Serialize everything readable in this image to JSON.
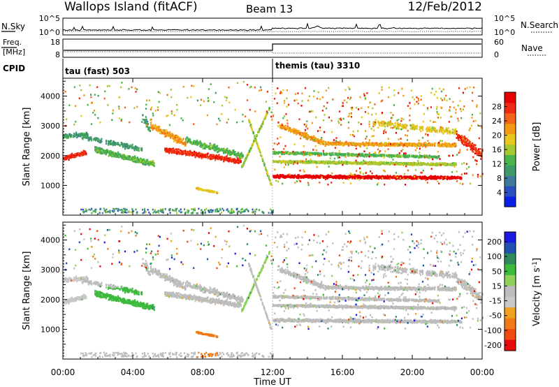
{
  "header": {
    "station": "Wallops Island (fitACF)",
    "beam": "Beam 13",
    "date": "12/Feb/2012"
  },
  "noise_panel": {
    "left_label": "N.Sky",
    "right_label": "N.Search",
    "left_ticks": [
      "10^5",
      "10^0"
    ],
    "right_ticks": [
      "10^5",
      "10^0"
    ]
  },
  "freq_panel": {
    "left_label_1": "Freq.",
    "left_label_2": "[MHz]",
    "right_label": "Nave",
    "left_ticks": [
      "18",
      "8"
    ],
    "right_ticks": [
      "60",
      "0"
    ]
  },
  "cpid_panel": {
    "label": "CPID",
    "segments": [
      {
        "name": "tau (fast) 503",
        "start": 0,
        "end": 12
      },
      {
        "name": "themis (tau) 3310",
        "start": 12,
        "end": 24
      }
    ]
  },
  "colors": {
    "power": [
      "#0a1fe6",
      "#2a4fbf",
      "#3f7a9a",
      "#3f9a6a",
      "#4ab54a",
      "#a6c832",
      "#e8c81e",
      "#f29a14",
      "#f2641a",
      "#ef2a14",
      "#e60000"
    ],
    "velocity": [
      "#1a1ae0",
      "#2050b0",
      "#2e8a5a",
      "#3cba3c",
      "#8ed25a",
      "#bdbdbd",
      "#c8c8c8",
      "#f0a020",
      "#f07a18",
      "#f04a10",
      "#e60a0a"
    ]
  },
  "chart_data": [
    {
      "type": "heatmap",
      "title": "",
      "xlabel": "Time UT",
      "ylabel": "Slant Range [km]",
      "x_range": [
        0,
        24
      ],
      "y_range": [
        0,
        4600
      ],
      "x_ticks": [
        "00:00",
        "04:00",
        "08:00",
        "12:00",
        "16:00",
        "20:00",
        "00:00"
      ],
      "x_tick_values": [
        0,
        4,
        8,
        12,
        16,
        20,
        24
      ],
      "y_ticks": [
        "1000",
        "2000",
        "3000",
        "4000"
      ],
      "y_tick_values": [
        1000,
        2000,
        3000,
        4000
      ],
      "colorbar": {
        "label": "Power [dB]",
        "range": [
          0,
          32
        ],
        "ticks": [
          "4",
          "8",
          "12",
          "16",
          "20",
          "24",
          "28"
        ],
        "tick_values": [
          4,
          8,
          12,
          16,
          20,
          24,
          28
        ]
      }
    },
    {
      "type": "heatmap",
      "title": "",
      "xlabel": "Time UT",
      "ylabel": "Slant Range [km]",
      "x_range": [
        0,
        24
      ],
      "y_range": [
        0,
        4600
      ],
      "x_ticks": [
        "00:00",
        "04:00",
        "08:00",
        "12:00",
        "16:00",
        "20:00",
        "00:00"
      ],
      "x_tick_values": [
        0,
        4,
        8,
        12,
        16,
        20,
        24
      ],
      "y_ticks": [
        "1000",
        "2000",
        "3000",
        "4000"
      ],
      "y_tick_values": [
        1000,
        2000,
        3000,
        4000
      ],
      "colorbar": {
        "label": "Velocity [m s^-1]",
        "ticks": [
          "200",
          "100",
          "50",
          "15",
          "-15",
          "-50",
          "-100",
          "-200"
        ]
      }
    }
  ]
}
